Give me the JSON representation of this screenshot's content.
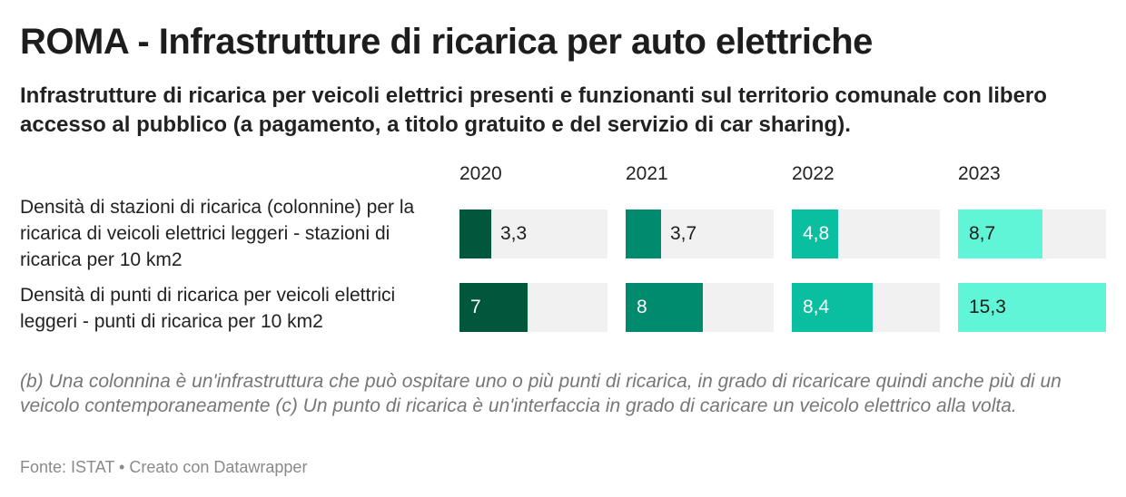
{
  "header": {
    "title": "ROMA - Infrastrutture di ricarica per auto elettriche",
    "subtitle": "Infrastrutture di ricarica per veicoli elettrici presenti e funzionanti sul territorio comunale con libero accesso al pubblico (a pagamento, a titolo gratuito e del servizio di car sharing)."
  },
  "chart_data": {
    "type": "bar",
    "categories": [
      "2020",
      "2021",
      "2022",
      "2023"
    ],
    "rows": [
      {
        "label": "Densità di stazioni di ricarica (colonnine) per la ricarica di veicoli elettrici leggeri - stazioni di ricarica per 10 km2",
        "values": [
          3.3,
          3.7,
          4.8,
          8.7
        ],
        "value_labels": [
          "3,3",
          "3,7",
          "4,8",
          "8,7"
        ]
      },
      {
        "label": "Densità di punti di ricarica per veicoli elettrici leggeri - punti di ricarica per 10 km2",
        "values": [
          7,
          8,
          8.4,
          15.3
        ],
        "value_labels": [
          "7",
          "8",
          "8,4",
          "15,3"
        ]
      }
    ],
    "xlim": [
      0,
      15.3
    ],
    "colors": [
      "#00573b",
      "#008a6e",
      "#0abfa0",
      "#5ff5d6"
    ],
    "track_color": "#f1f1f1"
  },
  "notes": "(b) Una colonnina è un'infrastruttura che può ospitare uno o più punti di ricarica, in grado di ricaricare quindi anche più di un veicolo contemporaneamente (c) Un punto di ricarica è un'interfaccia in grado di caricare un veicolo elettrico alla volta.",
  "footer": "Fonte: ISTAT • Creato con Datawrapper"
}
